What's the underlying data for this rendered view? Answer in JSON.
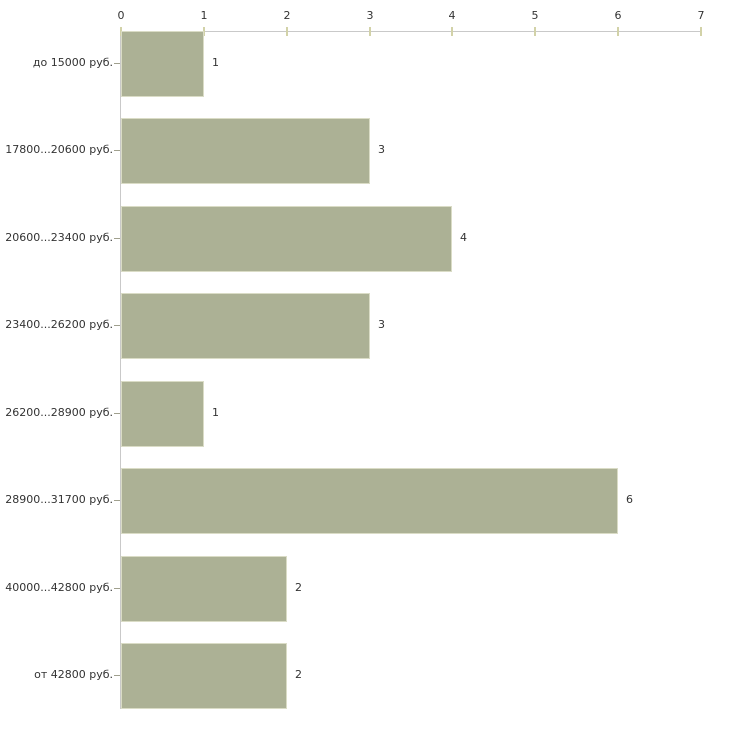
{
  "chart_data": {
    "type": "bar",
    "orientation": "horizontal",
    "title": "",
    "xlabel": "",
    "ylabel": "",
    "categories": [
      "до 15000 руб.",
      "17800...20600 руб.",
      "20600...23400 руб.",
      "23400...26200 руб.",
      "26200...28900 руб.",
      "28900...31700 руб.",
      "40000...42800 руб.",
      "от 42800 руб."
    ],
    "values": [
      1,
      3,
      4,
      3,
      1,
      6,
      2,
      2
    ],
    "value_labels": [
      "1",
      "3",
      "4",
      "3",
      "1",
      "6",
      "2",
      "2"
    ],
    "xlim": [
      0,
      7
    ],
    "xticks": [
      0,
      1,
      2,
      3,
      4,
      5,
      6,
      7
    ],
    "grid": false,
    "legend": false,
    "axis_position": "top",
    "colors": {
      "bar_fill": "#acb195",
      "bar_border": "#dadcc6",
      "axis_line": "#c9c9c9",
      "x_tick": "#d2d2a8",
      "y_tick": "#a0a08e",
      "text": "#333333",
      "background": "#ffffff"
    }
  }
}
